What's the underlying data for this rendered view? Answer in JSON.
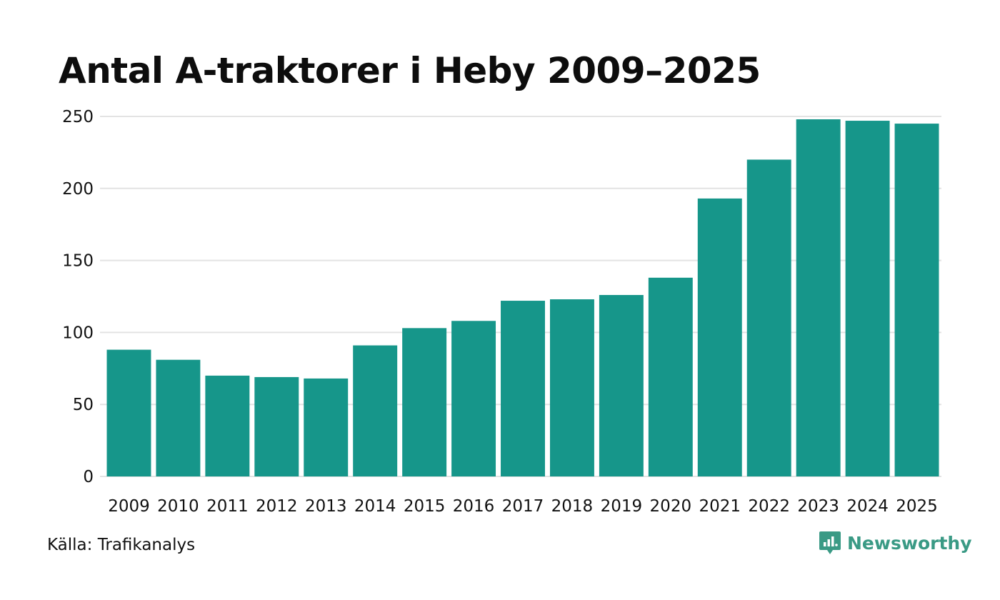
{
  "chart_data": {
    "type": "bar",
    "title": "Antal A-traktorer i Heby 2009–2025",
    "xlabel": "",
    "ylabel": "",
    "categories": [
      "2009",
      "2010",
      "2011",
      "2012",
      "2013",
      "2014",
      "2015",
      "2016",
      "2017",
      "2018",
      "2019",
      "2020",
      "2021",
      "2022",
      "2023",
      "2024",
      "2025"
    ],
    "values": [
      88,
      81,
      70,
      69,
      68,
      91,
      103,
      108,
      122,
      123,
      126,
      138,
      193,
      220,
      248,
      247,
      245
    ],
    "ylim": [
      0,
      250
    ],
    "yticks": [
      0,
      50,
      100,
      150,
      200,
      250
    ],
    "grid": true,
    "bar_color": "#16968a",
    "grid_color": "#e3e3e3"
  },
  "footer": {
    "source": "Källa: Trafikanalys",
    "brand": "Newsworthy",
    "brand_color": "#3a9a85",
    "brand_icon": "bar-chart-speech-bubble-icon"
  }
}
